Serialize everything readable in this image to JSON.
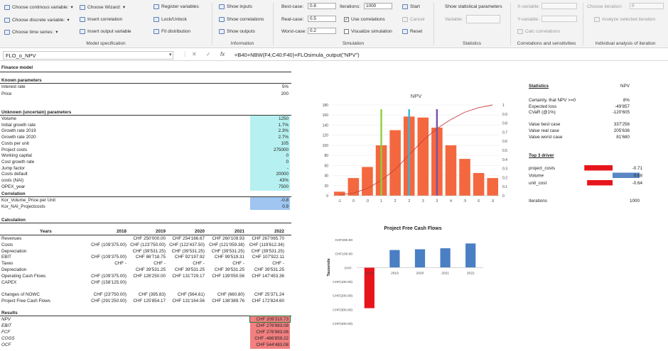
{
  "ribbon": {
    "model_spec": {
      "choose_continuous": "Choose continous variable:",
      "choose_discrete": "Choose discrete variable:",
      "choose_time_series": "Choose time series:",
      "choose_wizard": "Choose Wizard:",
      "insert_correlation": "Insert correlation",
      "insert_output": "Insert output variable",
      "register_vars": "Register variables",
      "lock_unlock": "Lock/Unlock",
      "fit_distribution": "Fit distribution",
      "label": "Model specification"
    },
    "information": {
      "show_inputs": "Show inputs",
      "show_correlations": "Show correlations",
      "show_outputs": "Show outputs",
      "label": "Information"
    },
    "simulation": {
      "best_case_label": "Best-case:",
      "best_case_value": "0.8",
      "real_case_label": "Real-case:",
      "real_case_value": "0.5",
      "worst_case_label": "Worst-case:",
      "worst_case_value": "0.2",
      "iterations_label": "Iterations:",
      "iterations_value": "1000",
      "use_correlations": "Use correlations",
      "visualize_simulation": "Visualize simulation",
      "start": "Start",
      "cancel": "Cancel",
      "reset": "Reset",
      "label": "Simulation"
    },
    "statistics": {
      "show_stat_params": "Show statistical parameters",
      "variable_label": "Variable:",
      "label": "Statistics"
    },
    "correlations": {
      "x_variable": "X-variable:",
      "y_variable": "Y-variable:",
      "calc_correlations": "Calc correlations",
      "label": "Correlations and sensitivities"
    },
    "individual": {
      "choose_iteration": "Choose iteration:",
      "iteration_value": "0",
      "analyze": "Analyze selected iteration",
      "label": "Individual analysis of iteration"
    }
  },
  "formula_bar": {
    "name_box": "FLO_o_NPV",
    "fx": "fx",
    "formula": "=B40+NBW(F4;C40:F40)+FLOsimula_output(\"NPV\")"
  },
  "sheet": {
    "finance_model": "Finance model",
    "known_params_header": "Known parameters",
    "known_params": [
      {
        "label": "Interest rate",
        "value": "5%"
      },
      {
        "label": "Price",
        "value": "200"
      }
    ],
    "unknown_params_header": "Unknown (uncertain) parameters",
    "unknown_params": [
      {
        "label": "Volume",
        "value": "1250"
      },
      {
        "label": "Initial growth rate",
        "value": "1.7%"
      },
      {
        "label": "Growth rate 2019",
        "value": "2.3%"
      },
      {
        "label": "Growth rate 2020",
        "value": "2.7%"
      },
      {
        "label": "Costs per unit",
        "value": "105"
      },
      {
        "label": "Project costs",
        "value": "275000"
      },
      {
        "label": "Working capital",
        "value": "0"
      },
      {
        "label": "Cost growth rate",
        "value": "0"
      },
      {
        "label": "Jump factor",
        "value": "-"
      },
      {
        "label": "Costs default",
        "value": "20000"
      },
      {
        "label": "costs (NAI)",
        "value": "43%"
      },
      {
        "label": "OPEX_year",
        "value": "7500"
      }
    ],
    "correlation_header": "Correlation",
    "correlations": [
      {
        "label": "Kor_Volume_Price per Unit",
        "value": "-0.8"
      },
      {
        "label": "Kor_NAI_Projectcosts",
        "value": "0.9"
      }
    ],
    "calculation_header": "Calculation",
    "years_label": "Years",
    "years": [
      "2018",
      "2019",
      "2020",
      "2021",
      "2022"
    ],
    "calc_rows": [
      {
        "label": "Revenues",
        "cells": [
          "",
          "CHF 250'000.00",
          "CHF 254'166.67",
          "CHF 260'109.93",
          "CHF 267'065.70"
        ]
      },
      {
        "label": "Costs",
        "cells": [
          "CHF (109'375.00)",
          "CHF (123'750.00)",
          "CHF (122'437.50)",
          "CHF (121'059.38)",
          "CHF (119'612.34)"
        ]
      },
      {
        "label": "Depreciation",
        "cells": [
          "",
          "CHF (39'531.25)",
          "CHF (39'531.25)",
          "CHF (39'531.25)",
          "CHF (39'531.25)"
        ]
      },
      {
        "label": "EBIT",
        "cells": [
          "CHF (109'375.00)",
          "CHF 86'718.75",
          "CHF 92'197.92",
          "CHF 99'519.31",
          "CHF 107'922.11"
        ]
      },
      {
        "label": "Taxes",
        "cells": [
          "CHF -",
          "CHF -",
          "CHF -",
          "CHF -",
          "CHF -"
        ]
      },
      {
        "label": "Depreciation",
        "cells": [
          "",
          "CHF 39'531.25",
          "CHF 39'531.25",
          "CHF 39'531.25",
          "CHF 39'531.25"
        ]
      },
      {
        "label": "Operating Cash Flows",
        "cells": [
          "CHF (109'375.00)",
          "CHF 126'250.00",
          "CHF 131'729.17",
          "CHF 139'050.56",
          "CHF 147'453.36"
        ]
      },
      {
        "label": "CAPEX",
        "cells": [
          "CHF (158'125.00)",
          "",
          "",
          "",
          ""
        ]
      },
      {
        "label": "",
        "cells": [
          "",
          "",
          "",
          "",
          ""
        ]
      },
      {
        "label": "Changes of NOWC",
        "cells": [
          "CHF (23'750.00)",
          "CHF (395.83)",
          "CHF (564.61)",
          "CHF (660.80)",
          "CHF 25'371.24"
        ]
      },
      {
        "label": "Project Free Cash Flows",
        "cells": [
          "CHF (291'250.00)",
          "CHF 125'854.17",
          "CHF 131'164.56",
          "CHF 138'389.76",
          "CHF 172'824.60"
        ]
      }
    ],
    "results_header": "Results",
    "results": [
      {
        "label": "NPV",
        "value": "CHF 209'310.73"
      },
      {
        "label": "EBIT",
        "value": "CHF 276'983.08"
      },
      {
        "label": "FCF",
        "value": "CHF 276'983.08"
      },
      {
        "label": "COGS",
        "value": "CHF -486'859.22"
      },
      {
        "label": "OCF",
        "value": "CHF 544'483.08"
      }
    ]
  },
  "stats_panel": {
    "title": "Statistics",
    "variable": "NPV",
    "rows": [
      {
        "label": "Certainty, that NPV >=0",
        "value": "8%"
      },
      {
        "label": "Expected loss",
        "value": "-49'857"
      },
      {
        "label": "CVaR (@1%)",
        "value": "-120'605"
      },
      {
        "label": "",
        "value": ""
      },
      {
        "label": "Value best case",
        "value": "337'256"
      },
      {
        "label": "Value real case",
        "value": "205'636"
      },
      {
        "label": "Value worst case",
        "value": "81'680"
      }
    ],
    "top3_title": "Top 3 driver",
    "drivers": [
      {
        "label": "project_costs",
        "value": -0.71,
        "display": "-0.71"
      },
      {
        "label": "Volume",
        "value": 0.68,
        "display": "0.68"
      },
      {
        "label": "unit_cost",
        "value": -0.64,
        "display": "-0.64"
      }
    ],
    "iterations_label": "Iterations",
    "iterations_value": "1000"
  },
  "chart_data": [
    {
      "type": "bar",
      "title": "NPV",
      "categories": [
        "-1",
        "0",
        ".0",
        "1",
        "2",
        "2",
        "3",
        "3",
        "4",
        ".5",
        "6",
        ".6"
      ],
      "series": [
        {
          "type": "bar",
          "values": [
            8,
            35,
            57,
            100,
            130,
            157,
            155,
            135,
            100,
            73,
            45,
            35
          ]
        },
        {
          "type": "line",
          "values": [
            0.01,
            0.03,
            0.08,
            0.17,
            0.29,
            0.45,
            0.61,
            0.74,
            0.84,
            0.92,
            0.97,
            1.0
          ]
        }
      ],
      "markers": [
        {
          "color": "#8fcf3c",
          "at": 3
        },
        {
          "color": "#3bb3d8",
          "at": 5
        },
        {
          "color": "#7b4fa8",
          "at": 7
        }
      ],
      "y_ticks": [
        "0",
        "20",
        "40",
        "60",
        "80",
        "100",
        "120",
        "140",
        "160",
        "180"
      ],
      "y2_ticks": [
        "0",
        "0.1",
        "0.2",
        "0.3",
        "0.4",
        "0.5",
        "0.6",
        "0.7",
        "0.8",
        "0.9",
        "1"
      ],
      "ylim": [
        0,
        180
      ],
      "y2lim": [
        0,
        1
      ],
      "bar_color": "#f4683f",
      "line_color": "#c8413b"
    },
    {
      "type": "bar",
      "title": "Project Free Cash Flows",
      "ylabel": "Tausende",
      "categories": [
        "2018",
        "2019",
        "2020",
        "2021",
        "2022"
      ],
      "values": [
        -291.25,
        125.85,
        131.16,
        138.39,
        172.82
      ],
      "y_ticks": [
        "CHF200.00",
        "CHF100.00",
        "CHF-",
        "CHF(100.00)",
        "CHF(200.00)",
        "CHF(300.00)",
        "CHF(400.00)"
      ],
      "ylim": [
        -400,
        200
      ],
      "colors": {
        "negative": "#e8141b",
        "positive": "#4a7fc4"
      }
    }
  ]
}
